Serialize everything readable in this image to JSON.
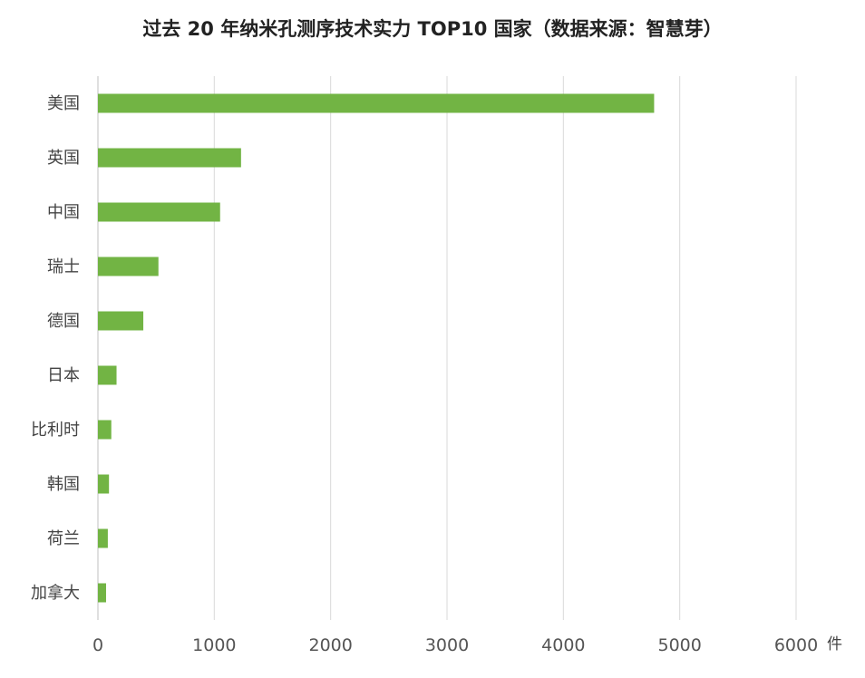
{
  "chart_data": {
    "type": "bar",
    "orientation": "horizontal",
    "title": "过去 20 年纳米孔测序技术实力 TOP10 国家（数据来源：智慧芽）",
    "categories": [
      "美国",
      "英国",
      "中国",
      "瑞士",
      "德国",
      "日本",
      "比利时",
      "韩国",
      "荷兰",
      "加拿大"
    ],
    "values": [
      4780,
      1230,
      1050,
      520,
      390,
      160,
      115,
      95,
      85,
      70
    ],
    "xlim": [
      0,
      6000
    ],
    "xticks": [
      "0",
      "1000",
      "2000",
      "3000",
      "4000",
      "5000",
      "6000"
    ],
    "xunit": "件",
    "grid": true,
    "bar_color": "#72b444",
    "grid_color": "#d9d9d9"
  }
}
